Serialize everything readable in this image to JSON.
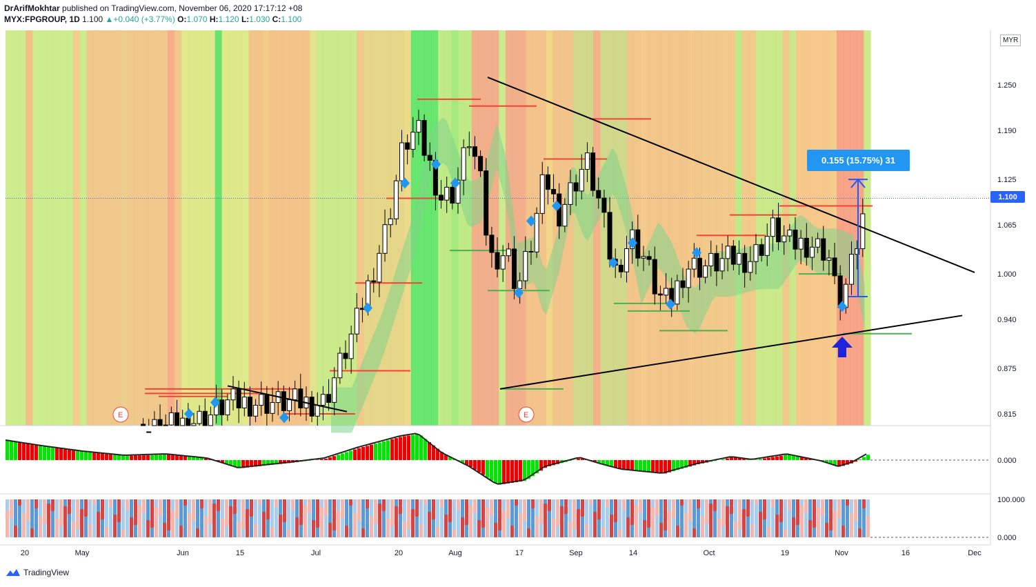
{
  "header": {
    "author": "DrArifMokhtar",
    "published": "published on TradingView.com, November 06, 2020 17:17:12 +08",
    "symbol": "MYX:FPGROUP, 1D",
    "last": "1.100",
    "change": "+0.040 (+3.77%)",
    "o_label": "O:",
    "o_val": "1.070",
    "h_label": "H:",
    "h_val": "1.120",
    "l_label": "L:",
    "l_val": "1.030",
    "c_label": "C:",
    "c_val": "1.100"
  },
  "currency": "MYR",
  "current_price_label": "1.100",
  "measure_label": "0.155 (15.75%) 31",
  "footer": {
    "brand": "TradingView"
  },
  "colors": {
    "up": "#ffffff",
    "down": "#000000",
    "resistance": "#f44336",
    "support": "#4caf50",
    "diamond": "#2196f3",
    "arrow": "#1e22d8",
    "price_label": "#2962ff",
    "osc_pos": "#00e600",
    "osc_neg": "#f00000"
  },
  "chart_data": [
    {
      "type": "line",
      "title": "MYX:FPGROUP, 1D",
      "price_axis": {
        "ticks": [
          "1.250",
          "1.190",
          "1.125",
          "1.065",
          "1.000",
          "0.940",
          "0.875",
          "0.815"
        ],
        "last": 1.1
      },
      "x_ticks": [
        "20",
        "May",
        "Jun",
        "15",
        "Jul",
        "20",
        "Aug",
        "17",
        "Sep",
        "14",
        "Oct",
        "19",
        "Nov",
        "16",
        "Dec"
      ],
      "ohlc_last": {
        "open": 1.07,
        "high": 1.12,
        "low": 1.03,
        "close": 1.1
      },
      "candles": [
        {
          "d": "Apr 27",
          "o": 0.8,
          "h": 0.82,
          "l": 0.79,
          "c": 0.81
        },
        {
          "d": "Apr 28",
          "o": 0.81,
          "h": 0.82,
          "l": 0.79,
          "c": 0.8
        },
        {
          "d": "Apr 29",
          "o": 0.8,
          "h": 0.81,
          "l": 0.79,
          "c": 0.8
        },
        {
          "d": "Apr 30",
          "o": 0.8,
          "h": 0.8,
          "l": 0.79,
          "c": 0.79
        },
        {
          "d": "May 4",
          "o": 0.79,
          "h": 0.8,
          "l": 0.78,
          "c": 0.79
        },
        {
          "d": "May 5",
          "o": 0.79,
          "h": 0.8,
          "l": 0.78,
          "c": 0.8
        },
        {
          "d": "May 6",
          "o": 0.8,
          "h": 0.81,
          "l": 0.79,
          "c": 0.8
        },
        {
          "d": "May 8",
          "o": 0.8,
          "h": 0.81,
          "l": 0.79,
          "c": 0.79
        },
        {
          "d": "May 11",
          "o": 0.79,
          "h": 0.8,
          "l": 0.78,
          "c": 0.79
        },
        {
          "d": "May 12",
          "o": 0.79,
          "h": 0.8,
          "l": 0.78,
          "c": 0.79
        },
        {
          "d": "May 13",
          "o": 0.79,
          "h": 0.8,
          "l": 0.78,
          "c": 0.78
        },
        {
          "d": "May 14",
          "o": 0.78,
          "h": 0.79,
          "l": 0.77,
          "c": 0.78
        },
        {
          "d": "May 15",
          "o": 0.78,
          "h": 0.79,
          "l": 0.77,
          "c": 0.79
        },
        {
          "d": "May 18",
          "o": 0.79,
          "h": 0.8,
          "l": 0.78,
          "c": 0.79
        },
        {
          "d": "May 19",
          "o": 0.79,
          "h": 0.8,
          "l": 0.78,
          "c": 0.78
        },
        {
          "d": "May 20",
          "o": 0.78,
          "h": 0.79,
          "l": 0.77,
          "c": 0.78
        },
        {
          "d": "May 21",
          "o": 0.78,
          "h": 0.79,
          "l": 0.77,
          "c": 0.79
        },
        {
          "d": "May 22",
          "o": 0.79,
          "h": 0.8,
          "l": 0.78,
          "c": 0.79
        },
        {
          "d": "May 26",
          "o": 0.79,
          "h": 0.81,
          "l": 0.78,
          "c": 0.8
        },
        {
          "d": "May 27",
          "o": 0.8,
          "h": 0.82,
          "l": 0.79,
          "c": 0.81
        },
        {
          "d": "May 28",
          "o": 0.81,
          "h": 0.82,
          "l": 0.79,
          "c": 0.8
        },
        {
          "d": "May 29",
          "o": 0.8,
          "h": 0.81,
          "l": 0.79,
          "c": 0.8
        },
        {
          "d": "Jun 1",
          "o": 0.8,
          "h": 0.81,
          "l": 0.79,
          "c": 0.81
        },
        {
          "d": "Jun 2",
          "o": 0.81,
          "h": 0.82,
          "l": 0.8,
          "c": 0.81
        },
        {
          "d": "Jun 3",
          "o": 0.8,
          "h": 0.82,
          "l": 0.79,
          "c": 0.82
        },
        {
          "d": "Jun 4",
          "o": 0.82,
          "h": 0.83,
          "l": 0.8,
          "c": 0.81
        },
        {
          "d": "Jun 5",
          "o": 0.81,
          "h": 0.82,
          "l": 0.8,
          "c": 0.8
        },
        {
          "d": "Jun 8",
          "o": 0.8,
          "h": 0.81,
          "l": 0.78,
          "c": 0.79
        },
        {
          "d": "Jun 9",
          "o": 0.79,
          "h": 0.84,
          "l": 0.79,
          "c": 0.84
        },
        {
          "d": "Jun 10",
          "o": 0.84,
          "h": 0.85,
          "l": 0.8,
          "c": 0.81
        },
        {
          "d": "Jun 11",
          "o": 0.81,
          "h": 0.82,
          "l": 0.8,
          "c": 0.8
        },
        {
          "d": "Jun 12",
          "o": 0.8,
          "h": 0.81,
          "l": 0.79,
          "c": 0.81
        },
        {
          "d": "Jun 15",
          "o": 0.81,
          "h": 0.83,
          "l": 0.79,
          "c": 0.82
        },
        {
          "d": "Jun 16",
          "o": 0.82,
          "h": 0.84,
          "l": 0.81,
          "c": 0.83
        },
        {
          "d": "Jun 17",
          "o": 0.83,
          "h": 0.84,
          "l": 0.78,
          "c": 0.79
        }
      ],
      "patterns": {
        "triangle_upper": [
          {
            "x": "Aug 10",
            "y": 1.26
          },
          {
            "x": "Nov 27",
            "y": 1.005
          }
        ],
        "triangle_lower": [
          {
            "x": "Aug 13",
            "y": 0.848
          },
          {
            "x": "Nov 26",
            "y": 0.945
          }
        ],
        "small_downtrend": [
          {
            "x": "Jun 12",
            "y": 0.852
          },
          {
            "x": "Jul 8",
            "y": 0.818
          }
        ],
        "measure": {
          "from": 0.97,
          "to": 1.125,
          "change": 0.155,
          "pct": 15.75,
          "bars": 31
        }
      },
      "markers": [
        "E",
        "E"
      ]
    },
    {
      "type": "area",
      "title": "",
      "y_ticks": [
        "0.000"
      ],
      "note": "momentum oscillator histogram"
    },
    {
      "type": "bar",
      "title": "",
      "y_ticks": [
        "100.000",
        "0.000"
      ]
    }
  ]
}
